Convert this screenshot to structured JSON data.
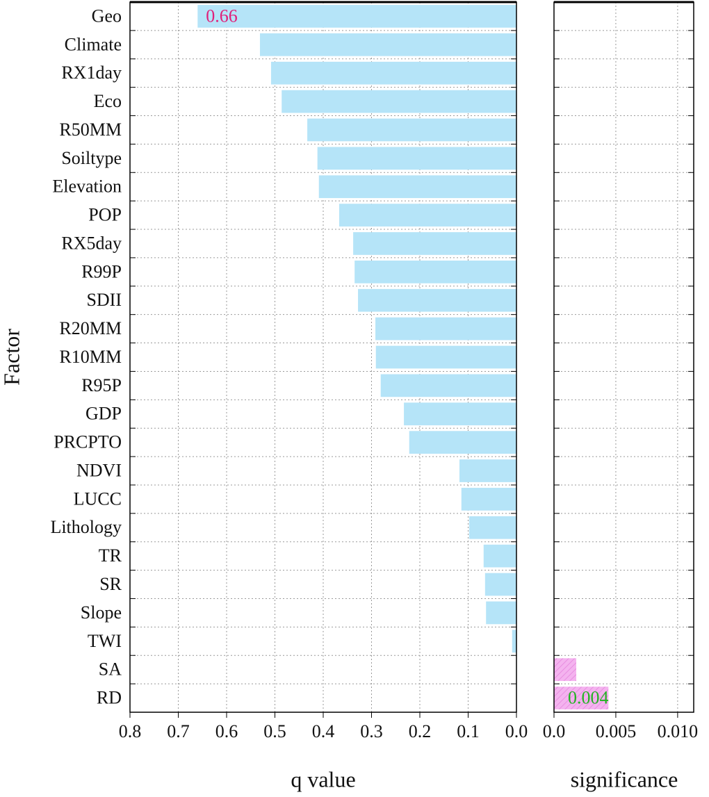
{
  "chart_data": [
    {
      "type": "bar",
      "orientation": "horizontal",
      "x_label": "q value",
      "y_label": "Factor",
      "categories": [
        "Geo",
        "Climate",
        "RX1day",
        "Eco",
        "R50MM",
        "Soiltype",
        "Elevation",
        "POP",
        "RX5day",
        "R99P",
        "SDII",
        "R20MM",
        "R10MM",
        "R95P",
        "GDP",
        "PRCPTO",
        "NDVI",
        "LUCC",
        "Lithology",
        "TR",
        "SR",
        "Slope",
        "TWI",
        "SA",
        "RD"
      ],
      "values": [
        0.66,
        0.531,
        0.508,
        0.486,
        0.433,
        0.412,
        0.409,
        0.367,
        0.338,
        0.335,
        0.328,
        0.292,
        0.291,
        0.281,
        0.233,
        0.222,
        0.118,
        0.114,
        0.098,
        0.068,
        0.065,
        0.063,
        0.009,
        null,
        null
      ],
      "value_labels": [
        "0.66",
        null,
        null,
        null,
        null,
        null,
        null,
        null,
        null,
        null,
        null,
        null,
        null,
        null,
        null,
        null,
        null,
        null,
        null,
        null,
        null,
        null,
        null,
        null,
        null
      ],
      "color": "#b5e4f8",
      "label_color": "#e0207a",
      "xlim": [
        0.8,
        0
      ],
      "xticks": [
        0.8,
        0.7,
        0.6,
        0.5,
        0.4,
        0.3,
        0.2,
        0.1,
        {
          "value": 0,
          "label": "0.0"
        }
      ],
      "grid": true
    },
    {
      "type": "bar",
      "orientation": "horizontal",
      "x_label": "significance",
      "values": [
        null,
        null,
        null,
        null,
        null,
        null,
        null,
        null,
        null,
        null,
        null,
        null,
        null,
        null,
        null,
        null,
        null,
        null,
        null,
        null,
        null,
        null,
        null,
        0.0018,
        0.0044
      ],
      "value_labels": [
        null,
        null,
        null,
        null,
        null,
        null,
        null,
        null,
        null,
        null,
        null,
        null,
        null,
        null,
        null,
        null,
        null,
        null,
        null,
        null,
        null,
        null,
        null,
        null,
        "0.004"
      ],
      "color": "#f4b3ef",
      "label_color": "#22b422",
      "xlim": [
        0,
        0.0113
      ],
      "xticks": [
        {
          "value": 0,
          "label": "0.0"
        },
        0.005,
        {
          "value": 0.01,
          "label": "0.010"
        }
      ],
      "grid": true
    }
  ]
}
